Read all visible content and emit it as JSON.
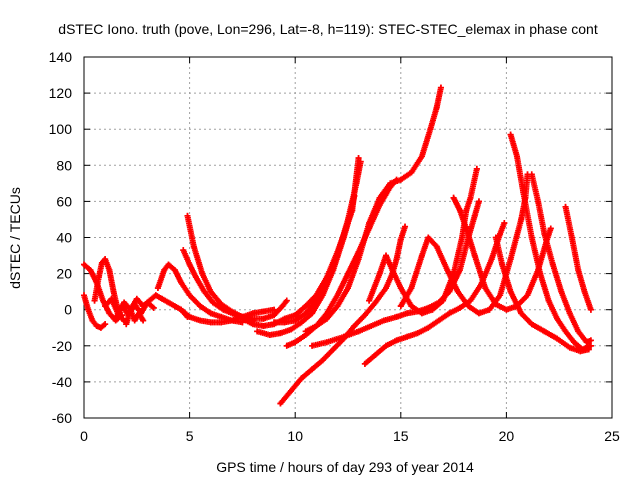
{
  "chart_data": {
    "type": "scatter",
    "title": "dSTEC Iono. truth (pove, Lon=296, Lat=-8, h=119): STEC-STEC_elemax in phase cont",
    "xlabel": "GPS time / hours of day 293 of year 2014",
    "ylabel": "dSTEC  / TECUs",
    "xlim": [
      0,
      25
    ],
    "ylim": [
      -60,
      140
    ],
    "xticks": [
      "0",
      "5",
      "10",
      "15",
      "20",
      "25"
    ],
    "yticks": [
      "-60",
      "-40",
      "-20",
      "0",
      "20",
      "40",
      "60",
      "80",
      "100",
      "120",
      "140"
    ],
    "grid": true,
    "marker": "+",
    "color": "#ff0000",
    "series": [
      {
        "points": [
          [
            0,
            25
          ],
          [
            0.3,
            22
          ],
          [
            0.6,
            15
          ],
          [
            0.9,
            5
          ],
          [
            1.2,
            -2
          ],
          [
            1.5,
            -6
          ],
          [
            1.8,
            -3
          ]
        ]
      },
      {
        "points": [
          [
            0,
            8
          ],
          [
            0.2,
            0
          ],
          [
            0.4,
            -6
          ],
          [
            0.6,
            -9
          ],
          [
            0.8,
            -10
          ],
          [
            1.0,
            -8
          ]
        ]
      },
      {
        "points": [
          [
            0.5,
            5
          ],
          [
            0.7,
            18
          ],
          [
            0.85,
            26
          ],
          [
            1.0,
            28
          ],
          [
            1.2,
            22
          ],
          [
            1.4,
            10
          ],
          [
            1.6,
            0
          ],
          [
            1.8,
            -5
          ],
          [
            2.0,
            -7
          ]
        ]
      },
      {
        "points": [
          [
            1.0,
            2
          ],
          [
            1.3,
            6
          ],
          [
            1.6,
            -2
          ],
          [
            1.9,
            4
          ],
          [
            2.2,
            0
          ],
          [
            2.5,
            6
          ],
          [
            2.8,
            2
          ],
          [
            3.1,
            5
          ],
          [
            3.4,
            8
          ],
          [
            3.7,
            6
          ],
          [
            4.0,
            4
          ],
          [
            4.3,
            2
          ],
          [
            4.6,
            0
          ],
          [
            4.9,
            -4
          ]
        ]
      },
      {
        "points": [
          [
            1.5,
            -5
          ],
          [
            1.8,
            2
          ],
          [
            2.1,
            -3
          ],
          [
            2.4,
            3
          ],
          [
            2.7,
            -2
          ],
          [
            3.0,
            4
          ],
          [
            3.3,
            1
          ]
        ]
      },
      {
        "points": [
          [
            2.0,
            -8
          ],
          [
            2.2,
            0
          ],
          [
            2.4,
            -6
          ],
          [
            2.6,
            -2
          ],
          [
            2.8,
            -6
          ]
        ]
      },
      {
        "points": [
          [
            3.5,
            12
          ],
          [
            3.8,
            22
          ],
          [
            4.0,
            25
          ],
          [
            4.3,
            22
          ],
          [
            4.6,
            15
          ],
          [
            5.0,
            8
          ],
          [
            5.5,
            2
          ],
          [
            6.0,
            -2
          ],
          [
            6.5,
            -4
          ],
          [
            7.0,
            -6
          ],
          [
            7.5,
            -7
          ]
        ]
      },
      {
        "points": [
          [
            4.7,
            33
          ],
          [
            5.0,
            25
          ],
          [
            5.3,
            18
          ],
          [
            5.7,
            10
          ],
          [
            6.1,
            4
          ],
          [
            6.6,
            0
          ],
          [
            7.2,
            -3
          ],
          [
            7.8,
            -5
          ],
          [
            8.5,
            -5
          ],
          [
            9.0,
            -3
          ],
          [
            9.4,
            2
          ],
          [
            9.6,
            5
          ]
        ]
      },
      {
        "points": [
          [
            4.9,
            52
          ],
          [
            5.2,
            35
          ],
          [
            5.6,
            20
          ],
          [
            6.0,
            10
          ],
          [
            6.5,
            3
          ],
          [
            7.0,
            -1
          ],
          [
            7.5,
            -4
          ],
          [
            8.0,
            -6
          ]
        ]
      },
      {
        "points": [
          [
            4.6,
            0
          ],
          [
            5.0,
            -4
          ],
          [
            5.5,
            -6
          ],
          [
            6.0,
            -7
          ],
          [
            6.5,
            -7
          ],
          [
            7.0,
            -6
          ],
          [
            7.5,
            -4
          ],
          [
            8.0,
            -2
          ],
          [
            8.5,
            -1
          ],
          [
            9.0,
            0
          ]
        ]
      },
      {
        "points": [
          [
            7.5,
            -5
          ],
          [
            8.0,
            -8
          ],
          [
            8.5,
            -9
          ],
          [
            9.0,
            -8
          ],
          [
            9.5,
            -5
          ],
          [
            10.0,
            -3
          ],
          [
            10.5,
            2
          ],
          [
            11.0,
            8
          ],
          [
            11.5,
            18
          ],
          [
            12.0,
            32
          ],
          [
            12.4,
            45
          ],
          [
            12.7,
            55
          ],
          [
            13.0,
            84
          ]
        ]
      },
      {
        "points": [
          [
            9.0,
            -7
          ],
          [
            9.5,
            -7
          ],
          [
            10.0,
            -6
          ],
          [
            10.5,
            -2
          ],
          [
            11.0,
            5
          ],
          [
            11.5,
            15
          ],
          [
            12.0,
            30
          ],
          [
            12.5,
            50
          ],
          [
            12.9,
            70
          ],
          [
            13.1,
            82
          ]
        ]
      },
      {
        "points": [
          [
            8.2,
            -12
          ],
          [
            8.8,
            -14
          ],
          [
            9.3,
            -13
          ],
          [
            9.8,
            -11
          ],
          [
            10.3,
            -7
          ],
          [
            10.8,
            -2
          ],
          [
            11.3,
            8
          ],
          [
            11.8,
            22
          ],
          [
            12.3,
            40
          ],
          [
            12.6,
            52
          ],
          [
            12.8,
            63
          ]
        ]
      },
      {
        "points": [
          [
            9.6,
            -20
          ],
          [
            10.0,
            -18
          ],
          [
            10.5,
            -14
          ],
          [
            11.0,
            -9
          ],
          [
            11.5,
            -2
          ],
          [
            12.0,
            8
          ],
          [
            12.5,
            20
          ],
          [
            13.0,
            32
          ],
          [
            13.5,
            45
          ],
          [
            14.0,
            58
          ],
          [
            14.5,
            68
          ],
          [
            14.8,
            72
          ]
        ]
      },
      {
        "points": [
          [
            10.5,
            -12
          ],
          [
            11.0,
            -9
          ],
          [
            11.5,
            -5
          ],
          [
            12.0,
            2
          ],
          [
            12.5,
            12
          ],
          [
            13.0,
            28
          ],
          [
            13.5,
            48
          ],
          [
            14.0,
            62
          ],
          [
            14.5,
            70
          ],
          [
            15.0,
            72
          ],
          [
            15.5,
            76
          ],
          [
            16.0,
            85
          ],
          [
            16.4,
            100
          ],
          [
            16.7,
            112
          ],
          [
            16.9,
            123
          ]
        ]
      },
      {
        "points": [
          [
            9.3,
            -52
          ],
          [
            9.8,
            -45
          ],
          [
            10.3,
            -38
          ],
          [
            10.8,
            -33
          ],
          [
            11.3,
            -28
          ],
          [
            11.8,
            -22
          ],
          [
            12.3,
            -16
          ],
          [
            12.8,
            -9
          ],
          [
            13.3,
            -3
          ],
          [
            13.8,
            4
          ],
          [
            14.3,
            12
          ],
          [
            14.6,
            20
          ],
          [
            14.8,
            28
          ],
          [
            15.0,
            39
          ],
          [
            15.2,
            46
          ]
        ]
      },
      {
        "points": [
          [
            10.8,
            -20
          ],
          [
            11.5,
            -18
          ],
          [
            12.3,
            -15
          ],
          [
            13.0,
            -12
          ],
          [
            13.6,
            -9
          ],
          [
            14.2,
            -6
          ],
          [
            14.8,
            -4
          ],
          [
            15.3,
            -2
          ],
          [
            15.8,
            -1
          ],
          [
            16.3,
            1
          ],
          [
            16.8,
            4
          ],
          [
            17.3,
            10
          ],
          [
            17.8,
            22
          ],
          [
            18.2,
            40
          ],
          [
            18.5,
            52
          ],
          [
            18.7,
            60
          ]
        ]
      },
      {
        "points": [
          [
            13.3,
            -30
          ],
          [
            13.8,
            -25
          ],
          [
            14.3,
            -20
          ],
          [
            14.8,
            -17
          ],
          [
            15.3,
            -15
          ],
          [
            15.8,
            -13
          ],
          [
            16.3,
            -10
          ],
          [
            16.8,
            -6
          ],
          [
            17.3,
            -2
          ],
          [
            17.8,
            1
          ],
          [
            18.3,
            5
          ],
          [
            18.8,
            14
          ],
          [
            19.3,
            28
          ],
          [
            19.7,
            42
          ],
          [
            19.9,
            48
          ]
        ]
      },
      {
        "points": [
          [
            13.5,
            5
          ],
          [
            14.0,
            20
          ],
          [
            14.3,
            30
          ],
          [
            14.6,
            22
          ],
          [
            15.0,
            12
          ],
          [
            15.5,
            2
          ],
          [
            16.0,
            -2
          ],
          [
            16.5,
            0
          ],
          [
            17.0,
            5
          ],
          [
            17.5,
            20
          ],
          [
            17.9,
            40
          ],
          [
            18.1,
            55
          ],
          [
            18.3,
            62
          ],
          [
            18.6,
            78
          ]
        ]
      },
      {
        "points": [
          [
            15.0,
            2
          ],
          [
            15.5,
            12
          ],
          [
            16.0,
            30
          ],
          [
            16.3,
            40
          ],
          [
            16.7,
            35
          ],
          [
            17.2,
            22
          ],
          [
            17.7,
            10
          ],
          [
            18.2,
            2
          ],
          [
            18.7,
            -2
          ],
          [
            19.2,
            0
          ],
          [
            19.7,
            8
          ],
          [
            20.2,
            28
          ],
          [
            20.7,
            50
          ],
          [
            20.9,
            62
          ],
          [
            21.0,
            75
          ]
        ]
      },
      {
        "points": [
          [
            17.5,
            62
          ],
          [
            17.8,
            55
          ],
          [
            18.1,
            45
          ],
          [
            18.5,
            30
          ],
          [
            19.0,
            12
          ],
          [
            19.5,
            3
          ],
          [
            20.0,
            0
          ],
          [
            20.5,
            2
          ],
          [
            21.0,
            8
          ],
          [
            21.5,
            22
          ],
          [
            21.9,
            38
          ],
          [
            22.1,
            45
          ]
        ]
      },
      {
        "points": [
          [
            20.2,
            97
          ],
          [
            20.5,
            85
          ],
          [
            20.8,
            65
          ],
          [
            21.2,
            40
          ],
          [
            21.6,
            20
          ],
          [
            22.0,
            5
          ],
          [
            22.4,
            -5
          ],
          [
            22.8,
            -12
          ],
          [
            23.2,
            -18
          ],
          [
            23.6,
            -22
          ],
          [
            24.0,
            -20
          ]
        ]
      },
      {
        "points": [
          [
            21.2,
            75
          ],
          [
            21.5,
            60
          ],
          [
            21.8,
            42
          ],
          [
            22.2,
            25
          ],
          [
            22.6,
            10
          ],
          [
            23.0,
            -2
          ],
          [
            23.4,
            -12
          ],
          [
            23.8,
            -18
          ],
          [
            24.0,
            -17
          ]
        ]
      },
      {
        "points": [
          [
            22.8,
            57
          ],
          [
            23.1,
            40
          ],
          [
            23.4,
            22
          ],
          [
            23.7,
            10
          ],
          [
            24.0,
            0
          ]
        ]
      },
      {
        "points": [
          [
            19.5,
            40
          ],
          [
            19.8,
            25
          ],
          [
            20.2,
            10
          ],
          [
            20.7,
            -2
          ],
          [
            21.2,
            -8
          ],
          [
            21.8,
            -12
          ],
          [
            22.4,
            -16
          ],
          [
            23.0,
            -21
          ],
          [
            23.5,
            -23
          ],
          [
            23.9,
            -22
          ]
        ]
      }
    ]
  }
}
